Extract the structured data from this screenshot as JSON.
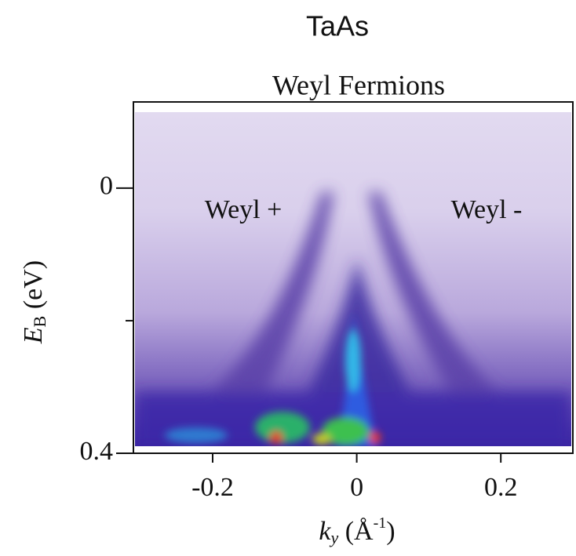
{
  "header": {
    "title": "TaAs"
  },
  "chart_data": {
    "type": "intensity-map",
    "title": "Weyl Fermions",
    "x_label": {
      "symbol": "k",
      "subscript": "y",
      "unit": " (Å",
      "exponent": "-1",
      "close": ")"
    },
    "y_label": {
      "symbol": "E",
      "subscript": "B",
      "unit": " (eV)"
    },
    "xlim": [
      -0.31,
      0.3
    ],
    "xticks": [
      -0.2,
      0,
      0.2
    ],
    "ylim": [
      -0.13,
      0.4
    ],
    "y_inverted": true,
    "yticks": [
      0,
      0.4
    ],
    "y_minor_ticks": [
      0.2
    ],
    "annotations": [
      "Weyl +",
      "Weyl -"
    ]
  }
}
